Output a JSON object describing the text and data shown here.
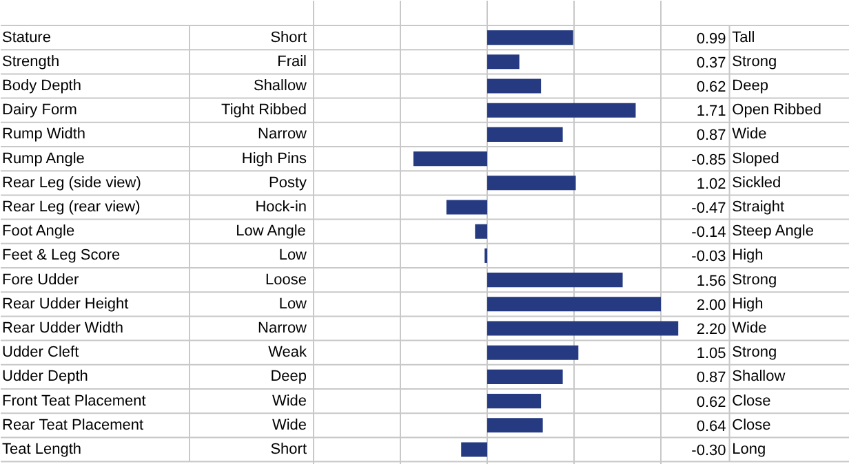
{
  "chart_data": {
    "type": "bar",
    "orientation": "horizontal",
    "categories": [
      "Stature",
      "Strength",
      "Body Depth",
      "Dairy Form",
      "Rump Width",
      "Rump Angle",
      "Rear Leg (side view)",
      "Rear Leg (rear view)",
      "Foot Angle",
      "Feet & Leg Score",
      "Fore Udder",
      "Rear Udder Height",
      "Rear Udder Width",
      "Udder Cleft",
      "Udder Depth",
      "Front Teat Placement",
      "Rear Teat Placement",
      "Teat Length"
    ],
    "values": [
      0.99,
      0.37,
      0.62,
      1.71,
      0.87,
      -0.85,
      1.02,
      -0.47,
      -0.14,
      -0.03,
      1.56,
      2.0,
      2.2,
      1.05,
      0.87,
      0.62,
      0.64,
      -0.3
    ],
    "value_labels": [
      "0.99",
      "0.37",
      "0.62",
      "1.71",
      "0.87",
      "-0.85",
      "1.02",
      "-0.47",
      "-0.14",
      "-0.03",
      "1.56",
      "2.00",
      "2.20",
      "1.05",
      "0.87",
      "0.62",
      "0.64",
      "-0.30"
    ],
    "color": "#253a80",
    "xlim": [
      -2,
      2.2
    ],
    "xticks": [
      {
        "value": -2,
        "label": null
      },
      {
        "value": -1,
        "label": null
      },
      {
        "value": 0,
        "label": null
      },
      {
        "value": 1,
        "label": null
      },
      {
        "value": 2,
        "label": null
      }
    ],
    "grid": "x",
    "tick_labels": false,
    "annotations": [
      "Short",
      "Tall",
      "Frail",
      "Strong",
      "Shallow",
      "Deep",
      "Tight Ribbed",
      "Open Ribbed",
      "Narrow",
      "Wide",
      "High Pins",
      "Sloped",
      "Posty",
      "Sickled",
      "Hock-in",
      "Straight",
      "Low Angle",
      "Steep Angle",
      "Low",
      "High",
      "Loose",
      "Strong",
      "Low",
      "High",
      "Narrow",
      "Wide",
      "Weak",
      "Strong",
      "Deep",
      "Shallow",
      "Wide",
      "Close",
      "Wide",
      "Close",
      "Short",
      "Long"
    ]
  }
}
